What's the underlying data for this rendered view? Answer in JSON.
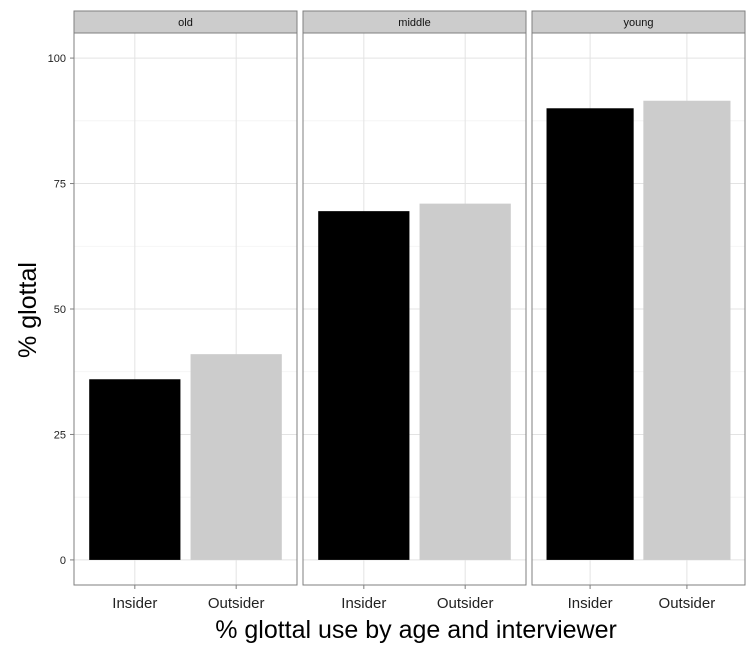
{
  "chart_data": {
    "type": "bar",
    "xlabel": "% glottal use by age and interviewer",
    "ylabel": "% glottal",
    "ylim": [
      -5,
      105
    ],
    "yticks": [
      0,
      25,
      50,
      75,
      100
    ],
    "grid": true,
    "categories": [
      "Insider",
      "Outsider"
    ],
    "colors": {
      "Insider": "#000000",
      "Outsider": "#cccccc"
    },
    "facets": [
      {
        "label": "old",
        "values": [
          36,
          41
        ]
      },
      {
        "label": "middle",
        "values": [
          69.5,
          71
        ]
      },
      {
        "label": "young",
        "values": [
          90,
          91.5
        ]
      }
    ]
  }
}
